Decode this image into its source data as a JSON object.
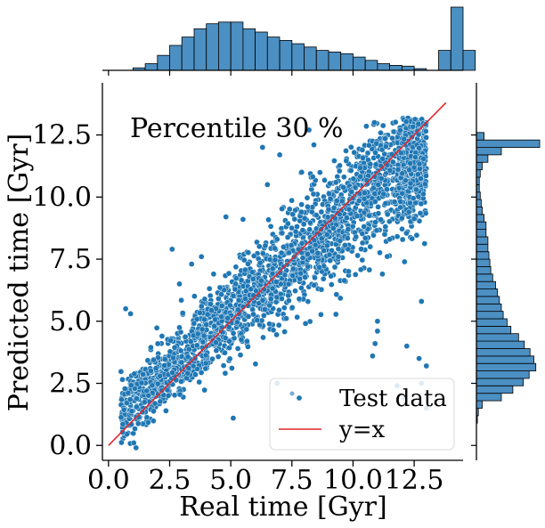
{
  "chart_data": {
    "type": "scatter",
    "annotation": "Percentile 30 %",
    "xlabel": "Real time [Gyr]",
    "ylabel": "Predicted time [Gyr]",
    "xlim": [
      -0.25,
      14.5
    ],
    "ylim": [
      -0.6,
      14.6
    ],
    "xticks": [
      0.0,
      2.5,
      5.0,
      7.5,
      10.0,
      12.5
    ],
    "xtick_labels": [
      "0.0",
      "2.5",
      "5.0",
      "7.5",
      "10.0",
      "12.5"
    ],
    "yticks": [
      0.0,
      2.5,
      5.0,
      7.5,
      10.0,
      12.5
    ],
    "ytick_labels": [
      "0.0",
      "2.5",
      "5.0",
      "7.5",
      "10.0",
      "12.5"
    ],
    "legend": {
      "placement": "lower-right",
      "entries": [
        {
          "label": "Test data",
          "kind": "scatter"
        },
        {
          "label": "y=x",
          "kind": "line"
        }
      ]
    },
    "series": [
      {
        "name": "Test data",
        "kind": "scatter",
        "color": "#1f77b4",
        "clusters": [
          {
            "x": [
              0.5,
              13.0
            ],
            "slope": 0.88,
            "intercept": 0.8,
            "spread": 1.1,
            "count": 2200
          },
          {
            "x": [
              11.8,
              13.0
            ],
            "slope": 0.0,
            "intercept": 11.3,
            "spread": 1.0,
            "count": 300
          }
        ],
        "points": [
          [
            0.7,
            5.5
          ],
          [
            0.9,
            5.3
          ],
          [
            2.6,
            7.9
          ],
          [
            3.4,
            7.3
          ],
          [
            5.1,
            1.1
          ],
          [
            6.9,
            2.5
          ],
          [
            8.2,
            12.7
          ],
          [
            8.4,
            12.1
          ],
          [
            7.0,
            11.7
          ],
          [
            5.5,
            9.1
          ],
          [
            10.8,
            3.6
          ],
          [
            10.9,
            4.1
          ],
          [
            11.0,
            4.6
          ],
          [
            12.2,
            4.0
          ],
          [
            11.8,
            2.4
          ],
          [
            12.1,
            1.9
          ],
          [
            12.8,
            2.5
          ],
          [
            11.0,
            5.0
          ],
          [
            12.7,
            3.5
          ],
          [
            13.0,
            1.5
          ],
          [
            12.8,
            5.8
          ],
          [
            13.0,
            3.2
          ],
          [
            11.2,
            6.9
          ],
          [
            11.5,
            8.3
          ],
          [
            10.7,
            8.0
          ],
          [
            9.8,
            8.7
          ],
          [
            9.4,
            7.6
          ],
          [
            7.8,
            5.9
          ],
          [
            8.7,
            8.7
          ],
          [
            9.0,
            9.5
          ],
          [
            5.2,
            6.5
          ],
          [
            3.8,
            7.6
          ],
          [
            4.8,
            9.2
          ],
          [
            4.3,
            6.9
          ],
          [
            6.3,
            12.0
          ],
          [
            2.9,
            6.5
          ],
          [
            6.5,
            10.5
          ],
          [
            7.9,
            11.0
          ]
        ]
      },
      {
        "name": "y=x",
        "kind": "line",
        "color": "#e4262b",
        "x": [
          0.0,
          13.8
        ],
        "y": [
          0.0,
          13.8
        ]
      }
    ],
    "top_histogram": {
      "variable": "Real time [Gyr]",
      "color": "#4c8fc2",
      "bin_start": 0.5,
      "bin_width": 0.5,
      "counts": [
        0,
        3,
        8,
        18,
        30,
        40,
        50,
        56,
        58,
        58,
        50,
        46,
        40,
        36,
        32,
        28,
        24,
        22,
        20,
        16,
        12,
        8,
        6,
        5,
        2,
        0,
        24,
        76,
        24
      ]
    },
    "right_histogram": {
      "variable": "Predicted time [Gyr]",
      "color": "#4c8fc2",
      "bin_start": 0.9,
      "bin_width": 0.3,
      "counts": [
        1,
        2,
        6,
        26,
        38,
        49,
        55,
        62,
        60,
        56,
        50,
        44,
        36,
        32,
        28,
        26,
        24,
        22,
        20,
        17,
        15,
        14,
        13,
        12,
        12,
        10,
        10,
        8,
        6,
        5,
        4,
        3,
        3,
        4,
        6,
        12,
        26,
        66,
        8
      ]
    }
  }
}
